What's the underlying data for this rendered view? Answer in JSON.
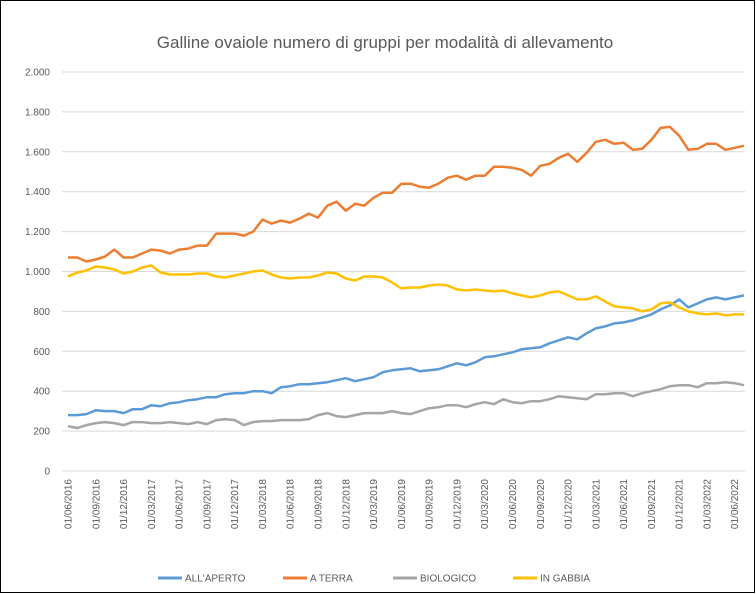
{
  "chart_data": {
    "type": "line",
    "title": "Galline ovaiole numero di gruppi per modalità di allevamento",
    "categories": [
      "01/06/2016",
      null,
      null,
      "01/09/2016",
      null,
      null,
      "01/12/2016",
      null,
      null,
      "01/03/2017",
      null,
      null,
      "01/06/2017",
      null,
      null,
      "01/09/2017",
      null,
      null,
      "01/12/2017",
      null,
      null,
      "01/03/2018",
      null,
      null,
      "01/06/2018",
      null,
      null,
      "01/09/2018",
      null,
      null,
      "01/12/2018",
      null,
      null,
      "01/03/2019",
      null,
      null,
      "01/06/2019",
      null,
      null,
      "01/09/2019",
      null,
      null,
      "01/12/2019",
      null,
      null,
      "01/03/2020",
      null,
      null,
      "01/06/2020",
      null,
      null,
      "01/09/2020",
      null,
      null,
      "01/12/2020",
      null,
      null,
      "01/03/2021",
      null,
      null,
      "01/06/2021",
      null,
      null,
      "01/09/2021",
      null,
      null,
      "01/12/2021",
      null,
      null,
      "01/03/2022",
      null,
      null,
      "01/06/2022",
      null
    ],
    "series": [
      {
        "name": "ALL'APERTO",
        "color": "#5b9bd5",
        "values": [
          280,
          280,
          285,
          305,
          300,
          300,
          290,
          310,
          310,
          330,
          325,
          340,
          345,
          355,
          360,
          370,
          370,
          385,
          390,
          390,
          400,
          400,
          390,
          420,
          425,
          435,
          435,
          440,
          445,
          455,
          465,
          450,
          460,
          470,
          495,
          505,
          510,
          515,
          500,
          505,
          510,
          525,
          540,
          530,
          545,
          570,
          575,
          585,
          595,
          610,
          615,
          620,
          640,
          655,
          670,
          660,
          690,
          715,
          725,
          740,
          745,
          755,
          770,
          785,
          810,
          830,
          860,
          820,
          840,
          860,
          870,
          860,
          870,
          880
        ]
      },
      {
        "name": "A TERRA",
        "color": "#ed7d31",
        "values": [
          1070,
          1070,
          1050,
          1060,
          1075,
          1110,
          1070,
          1070,
          1090,
          1110,
          1105,
          1090,
          1110,
          1115,
          1130,
          1130,
          1190,
          1190,
          1190,
          1180,
          1200,
          1260,
          1240,
          1255,
          1245,
          1265,
          1290,
          1270,
          1330,
          1350,
          1305,
          1340,
          1330,
          1370,
          1395,
          1395,
          1440,
          1440,
          1425,
          1420,
          1440,
          1470,
          1480,
          1460,
          1480,
          1480,
          1525,
          1525,
          1520,
          1510,
          1480,
          1530,
          1540,
          1570,
          1590,
          1550,
          1595,
          1650,
          1660,
          1640,
          1645,
          1610,
          1615,
          1660,
          1720,
          1725,
          1680,
          1610,
          1615,
          1640,
          1640,
          1610,
          1620,
          1630
        ]
      },
      {
        "name": "BIOLOGICO",
        "color": "#a5a5a5",
        "values": [
          225,
          215,
          230,
          240,
          245,
          240,
          230,
          245,
          245,
          240,
          240,
          245,
          240,
          235,
          245,
          235,
          255,
          260,
          255,
          230,
          245,
          250,
          250,
          255,
          255,
          255,
          260,
          280,
          290,
          275,
          270,
          280,
          290,
          290,
          290,
          300,
          290,
          285,
          300,
          315,
          320,
          330,
          330,
          320,
          335,
          345,
          335,
          360,
          345,
          340,
          350,
          350,
          360,
          375,
          370,
          365,
          360,
          385,
          385,
          390,
          390,
          375,
          390,
          400,
          410,
          425,
          430,
          430,
          420,
          440,
          440,
          445,
          440,
          430
        ]
      },
      {
        "name": "IN GABBIA",
        "color": "#ffc000",
        "values": [
          975,
          995,
          1005,
          1025,
          1020,
          1010,
          990,
          1000,
          1020,
          1030,
          995,
          985,
          985,
          985,
          990,
          990,
          975,
          970,
          980,
          990,
          1000,
          1005,
          985,
          970,
          965,
          970,
          970,
          980,
          995,
          990,
          965,
          955,
          975,
          975,
          970,
          945,
          915,
          920,
          920,
          930,
          935,
          930,
          910,
          905,
          910,
          905,
          900,
          905,
          890,
          880,
          870,
          880,
          895,
          900,
          880,
          860,
          860,
          875,
          850,
          825,
          820,
          815,
          800,
          810,
          840,
          845,
          820,
          800,
          790,
          785,
          790,
          780,
          785,
          785
        ]
      }
    ],
    "ylim": [
      0,
      2000
    ],
    "yticks": [
      0,
      200,
      400,
      600,
      800,
      {
        "value": 1000,
        "label": "1.000"
      },
      {
        "value": 1200,
        "label": "1.200"
      },
      {
        "value": 1400,
        "label": "1.400"
      },
      {
        "value": 1600,
        "label": "1.600"
      },
      {
        "value": 1800,
        "label": "1.800"
      },
      {
        "value": 2000,
        "label": "2.000"
      }
    ],
    "grid": true,
    "legend": "bottom"
  }
}
